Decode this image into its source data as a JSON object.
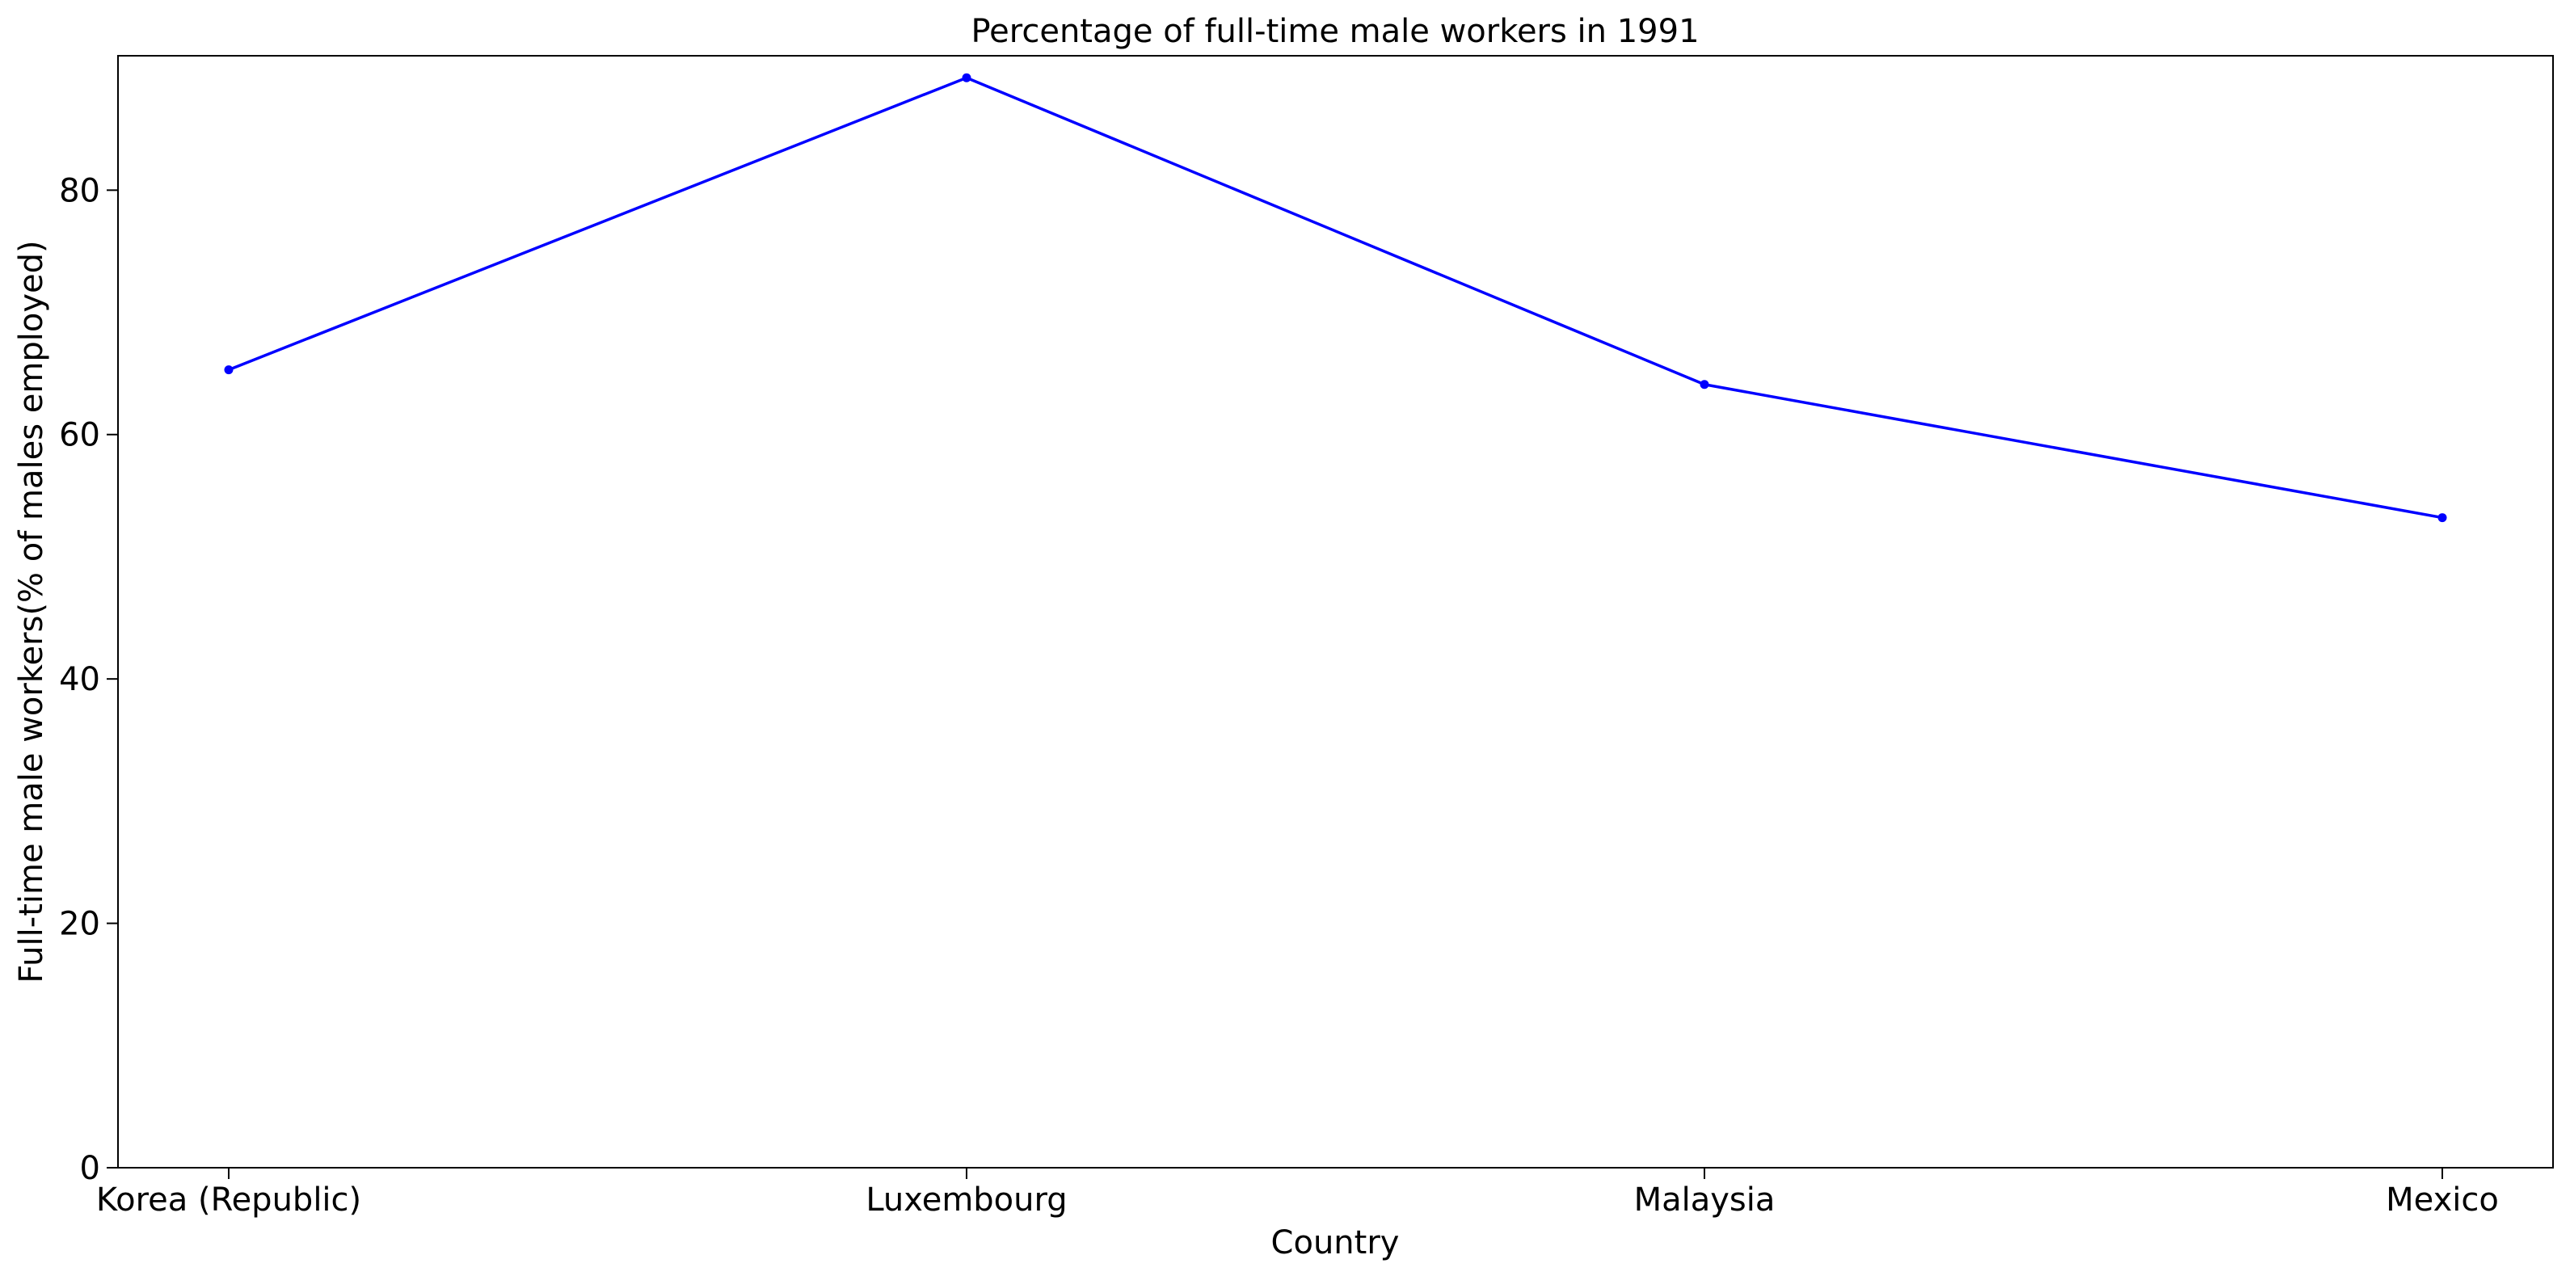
{
  "chart_data": {
    "type": "line",
    "title": "Percentage of full-time male workers in 1991",
    "xlabel": "Country",
    "ylabel": "Full-time male workers(% of males employed)",
    "categories": [
      "Korea (Republic)",
      "Luxembourg",
      "Malaysia",
      "Mexico"
    ],
    "series": [
      {
        "values": [
          65.3,
          89.2,
          64.1,
          53.2
        ]
      }
    ],
    "ylim": [
      0,
      91
    ],
    "yticks": [
      0,
      20,
      40,
      60,
      80
    ],
    "grid": false,
    "line_color": "#0000ff"
  }
}
